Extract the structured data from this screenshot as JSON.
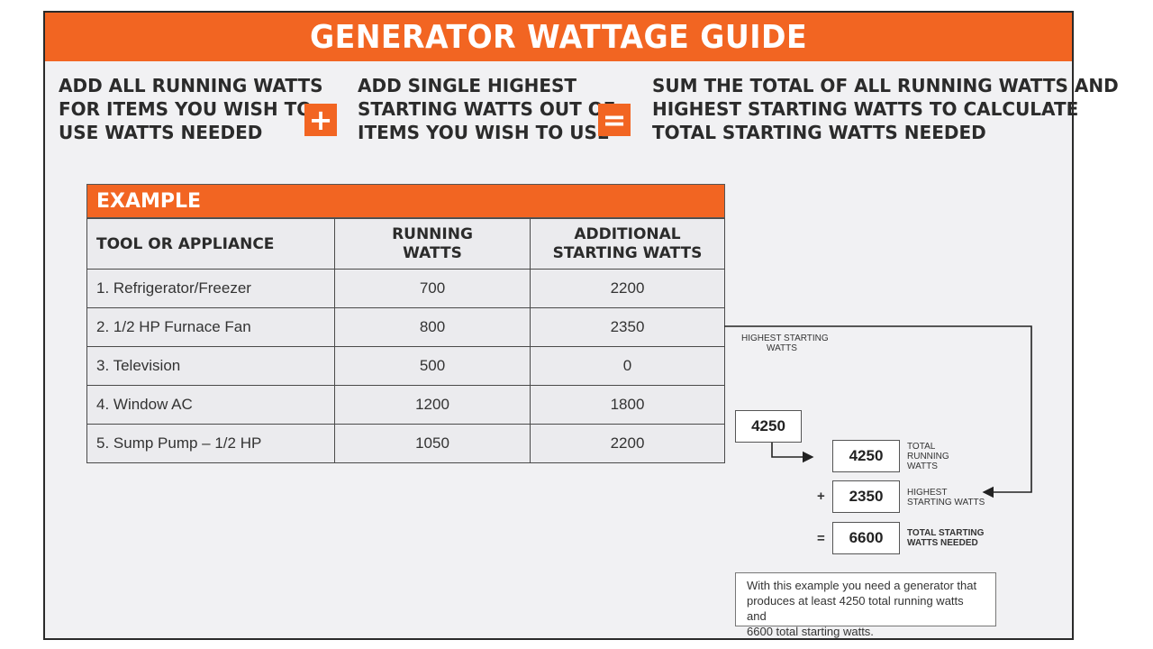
{
  "title": "GENERATOR WATTAGE GUIDE",
  "instructions": {
    "step1": [
      "ADD ALL RUNNING WATTS",
      "FOR ITEMS YOU WISH TO",
      "USE WATTS NEEDED"
    ],
    "plus": "+",
    "step2": [
      "ADD SINGLE HIGHEST",
      "STARTING WATTS OUT OF",
      "ITEMS YOU WISH TO USE"
    ],
    "equals": "=",
    "step3": [
      "SUM THE TOTAL OF ALL RUNNING WATTS AND",
      "HIGHEST STARTING WATTS TO CALCULATE",
      "TOTAL STARTING WATTS NEEDED"
    ]
  },
  "example": {
    "label": "EXAMPLE",
    "headers": {
      "col1": "TOOL OR APPLIANCE",
      "col2": [
        "RUNNING",
        "WATTS"
      ],
      "col3": [
        "ADDITIONAL",
        "STARTING WATTS"
      ]
    },
    "rows": [
      {
        "item": "1. Refrigerator/Freezer",
        "running": "700",
        "starting": "2200"
      },
      {
        "item": "2. 1/2 HP Furnace Fan",
        "running": "800",
        "starting": "2350"
      },
      {
        "item": "3. Television",
        "running": "500",
        "starting": "0"
      },
      {
        "item": "4. Window AC",
        "running": "1200",
        "starting": "1800"
      },
      {
        "item": "5. Sump Pump – 1/2 HP",
        "running": "1050",
        "starting": "2200"
      }
    ]
  },
  "calc": {
    "highest_label": [
      "HIGHEST STARTING",
      "WATTS"
    ],
    "sum_box": "4250",
    "total_running": {
      "value": "4250",
      "label": [
        "TOTAL",
        "RUNNING",
        "WATTS"
      ]
    },
    "plus": "+",
    "highest": {
      "value": "2350",
      "label": [
        "HIGHEST",
        "STARTING WATTS"
      ]
    },
    "equals": "=",
    "total_starting": {
      "value": "6600",
      "label": [
        "TOTAL STARTING",
        "WATTS NEEDED"
      ]
    }
  },
  "note": [
    "With this example you need a generator that",
    "produces at least 4250 total running watts and",
    "6600 total starting watts."
  ],
  "colors": {
    "accent": "#f26522",
    "panel": "#f1f1f3"
  }
}
